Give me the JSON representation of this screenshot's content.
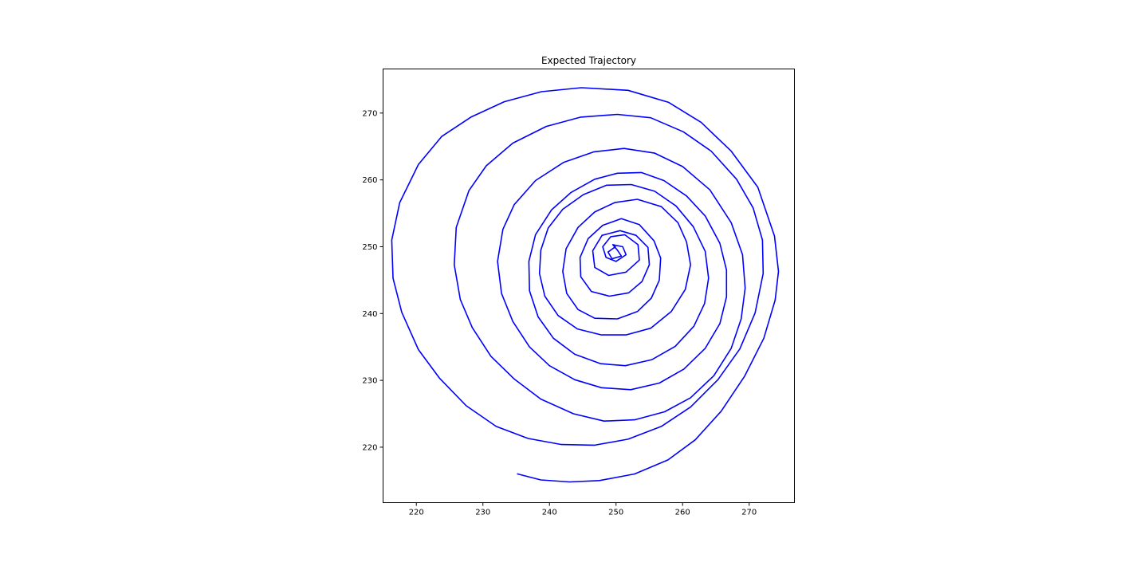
{
  "chart_data": {
    "type": "line",
    "title": "Expected Trajectory",
    "xlabel": "",
    "ylabel": "",
    "xlim": [
      215.0,
      276.8
    ],
    "ylim": [
      211.7,
      276.6
    ],
    "xticks": [
      220,
      230,
      240,
      250,
      260,
      270
    ],
    "yticks": [
      220,
      230,
      240,
      250,
      260,
      270
    ],
    "grid": false,
    "legend": "none",
    "colors": {
      "line": "#0000ff",
      "axes": "#000000",
      "background": "#ffffff"
    },
    "series": [
      {
        "points": [
          [
            235.2,
            216.0
          ],
          [
            238.7,
            215.1
          ],
          [
            243.0,
            214.8
          ],
          [
            247.5,
            215.0
          ],
          [
            252.8,
            216.0
          ],
          [
            257.8,
            218.1
          ],
          [
            261.9,
            221.1
          ],
          [
            265.8,
            225.4
          ],
          [
            269.3,
            230.6
          ],
          [
            272.2,
            236.3
          ],
          [
            273.9,
            242.0
          ],
          [
            274.4,
            246.3
          ],
          [
            273.8,
            251.6
          ],
          [
            271.3,
            258.9
          ],
          [
            267.3,
            264.3
          ],
          [
            262.8,
            268.6
          ],
          [
            257.9,
            271.6
          ],
          [
            251.8,
            273.4
          ],
          [
            244.8,
            273.8
          ],
          [
            238.8,
            273.2
          ],
          [
            233.2,
            271.7
          ],
          [
            228.2,
            269.4
          ],
          [
            223.8,
            266.5
          ],
          [
            220.3,
            262.3
          ],
          [
            217.5,
            256.6
          ],
          [
            216.3,
            251.0
          ],
          [
            216.5,
            245.3
          ],
          [
            217.8,
            240.2
          ],
          [
            220.3,
            234.6
          ],
          [
            223.5,
            230.3
          ],
          [
            227.5,
            226.2
          ],
          [
            232.0,
            223.1
          ],
          [
            236.8,
            221.3
          ],
          [
            241.8,
            220.4
          ],
          [
            246.8,
            220.3
          ],
          [
            251.8,
            221.2
          ],
          [
            256.8,
            223.1
          ],
          [
            261.2,
            226.0
          ],
          [
            265.3,
            230.1
          ],
          [
            268.6,
            234.7
          ],
          [
            270.9,
            240.1
          ],
          [
            272.1,
            246.0
          ],
          [
            272.0,
            251.0
          ],
          [
            270.6,
            255.8
          ],
          [
            268.1,
            260.1
          ],
          [
            264.3,
            264.3
          ],
          [
            260.1,
            267.2
          ],
          [
            255.2,
            269.3
          ],
          [
            250.2,
            269.8
          ],
          [
            244.7,
            269.4
          ],
          [
            239.5,
            268.0
          ],
          [
            234.5,
            265.5
          ],
          [
            230.5,
            262.1
          ],
          [
            227.9,
            258.4
          ],
          [
            226.0,
            252.9
          ],
          [
            225.7,
            247.3
          ],
          [
            226.6,
            242.1
          ],
          [
            228.4,
            237.9
          ],
          [
            231.2,
            233.6
          ],
          [
            234.7,
            230.2
          ],
          [
            238.7,
            227.2
          ],
          [
            243.6,
            225.0
          ],
          [
            248.2,
            223.9
          ],
          [
            252.8,
            224.1
          ],
          [
            257.3,
            225.3
          ],
          [
            261.2,
            227.4
          ],
          [
            264.7,
            230.7
          ],
          [
            267.3,
            234.8
          ],
          [
            268.8,
            239.2
          ],
          [
            269.4,
            243.8
          ],
          [
            269.0,
            248.8
          ],
          [
            267.3,
            253.6
          ],
          [
            264.1,
            258.5
          ],
          [
            260.0,
            262.0
          ],
          [
            255.8,
            264.0
          ],
          [
            251.2,
            264.7
          ],
          [
            246.7,
            264.2
          ],
          [
            242.1,
            262.6
          ],
          [
            237.9,
            259.9
          ],
          [
            234.7,
            256.3
          ],
          [
            233.0,
            252.6
          ],
          [
            232.2,
            247.8
          ],
          [
            232.8,
            243.0
          ],
          [
            234.5,
            238.8
          ],
          [
            237.0,
            235.0
          ],
          [
            240.0,
            232.2
          ],
          [
            243.8,
            230.1
          ],
          [
            247.8,
            228.9
          ],
          [
            252.2,
            228.6
          ],
          [
            256.5,
            229.6
          ],
          [
            260.2,
            231.7
          ],
          [
            263.4,
            234.8
          ],
          [
            265.6,
            238.5
          ],
          [
            266.6,
            242.5
          ],
          [
            266.6,
            246.5
          ],
          [
            265.6,
            250.5
          ],
          [
            263.4,
            254.6
          ],
          [
            260.6,
            257.6
          ],
          [
            257.2,
            259.9
          ],
          [
            253.8,
            261.1
          ],
          [
            250.2,
            261.0
          ],
          [
            246.8,
            260.1
          ],
          [
            243.2,
            258.1
          ],
          [
            240.3,
            255.5
          ],
          [
            237.9,
            251.8
          ],
          [
            236.9,
            247.8
          ],
          [
            237.0,
            243.4
          ],
          [
            238.3,
            239.5
          ],
          [
            240.6,
            236.3
          ],
          [
            243.8,
            233.9
          ],
          [
            247.7,
            232.5
          ],
          [
            251.4,
            232.2
          ],
          [
            255.4,
            233.1
          ],
          [
            258.9,
            235.1
          ],
          [
            261.7,
            238.1
          ],
          [
            263.3,
            241.5
          ],
          [
            263.9,
            245.3
          ],
          [
            263.4,
            249.3
          ],
          [
            261.6,
            253.0
          ],
          [
            259.0,
            256.1
          ],
          [
            255.8,
            258.3
          ],
          [
            252.3,
            259.3
          ],
          [
            248.6,
            259.2
          ],
          [
            245.1,
            257.8
          ],
          [
            242.0,
            255.6
          ],
          [
            239.8,
            252.8
          ],
          [
            238.7,
            249.5
          ],
          [
            238.5,
            246.0
          ],
          [
            239.3,
            242.6
          ],
          [
            241.3,
            239.7
          ],
          [
            244.2,
            237.7
          ],
          [
            247.8,
            236.8
          ],
          [
            251.5,
            236.8
          ],
          [
            255.2,
            237.8
          ],
          [
            258.3,
            240.3
          ],
          [
            260.4,
            243.6
          ],
          [
            261.2,
            247.3
          ],
          [
            260.6,
            250.7
          ],
          [
            259.3,
            253.6
          ],
          [
            256.8,
            256.0
          ],
          [
            253.2,
            257.1
          ],
          [
            249.8,
            256.6
          ],
          [
            246.8,
            255.2
          ],
          [
            244.3,
            252.9
          ],
          [
            242.5,
            249.7
          ],
          [
            242.0,
            246.3
          ],
          [
            242.6,
            243.0
          ],
          [
            244.3,
            240.6
          ],
          [
            246.8,
            239.3
          ],
          [
            250.2,
            239.2
          ],
          [
            253.2,
            240.3
          ],
          [
            255.3,
            242.3
          ],
          [
            256.5,
            245.0
          ],
          [
            256.7,
            248.3
          ],
          [
            255.7,
            250.9
          ],
          [
            253.5,
            253.3
          ],
          [
            250.8,
            254.2
          ],
          [
            248.0,
            253.2
          ],
          [
            245.8,
            251.2
          ],
          [
            244.6,
            248.4
          ],
          [
            244.7,
            245.5
          ],
          [
            246.3,
            243.3
          ],
          [
            249.0,
            242.6
          ],
          [
            251.9,
            243.1
          ],
          [
            253.9,
            244.8
          ],
          [
            255.0,
            247.3
          ],
          [
            254.8,
            249.9
          ],
          [
            253.0,
            251.7
          ],
          [
            250.6,
            252.4
          ],
          [
            247.9,
            251.7
          ],
          [
            246.5,
            249.4
          ],
          [
            246.8,
            246.9
          ],
          [
            248.9,
            245.7
          ],
          [
            251.5,
            246.2
          ],
          [
            253.5,
            248.0
          ],
          [
            253.3,
            250.3
          ],
          [
            251.3,
            251.8
          ],
          [
            249.2,
            251.5
          ],
          [
            248.0,
            250.0
          ],
          [
            248.5,
            248.4
          ],
          [
            250.0,
            247.8
          ],
          [
            251.5,
            248.8
          ],
          [
            251.0,
            250.0
          ],
          [
            249.5,
            250.3
          ],
          [
            250.2,
            249.5
          ],
          [
            250.8,
            248.6
          ],
          [
            249.4,
            248.2
          ],
          [
            248.8,
            249.2
          ],
          [
            249.9,
            250.0
          ]
        ]
      }
    ]
  }
}
